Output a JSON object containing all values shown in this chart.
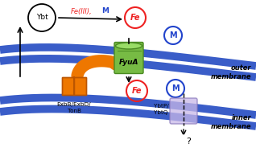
{
  "bg_color": "#ffffff",
  "outer_membrane_color": "#3a5dc8",
  "fyuA_color": "#77bb44",
  "fyuA_dark": "#4a8a22",
  "fyuA_light": "#99dd66",
  "exb_color": "#ee7700",
  "exb_dark": "#bb5500",
  "ybt_color": "#c8b8e8",
  "fe_circle_color": "#ee2222",
  "fe_text_color": "#ee2222",
  "m_text_color": "#2244cc",
  "text_feciii_color": "#ee2222",
  "ybt_label": "Ybt",
  "fe_label": "Fe",
  "m_label": "M",
  "fyua_label": "FyuA",
  "exb_label": "ExbB/ExbD/\nTonB",
  "ybtp_label": "YbtP/\nYbtQ",
  "outer_mem_label": "outer\nmembrane",
  "inner_mem_label": "inner\nmembrane",
  "question_label": "?"
}
